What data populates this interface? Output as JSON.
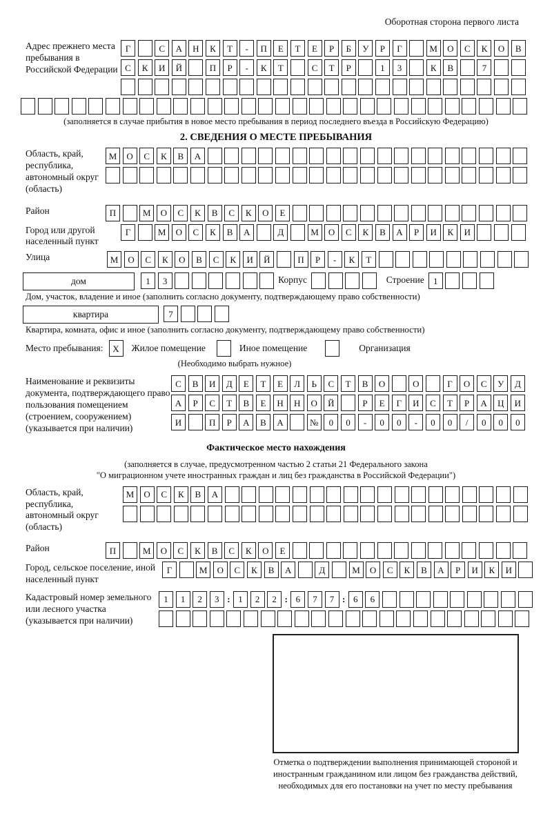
{
  "page": {
    "header_note": "Оборотная сторона первого листа"
  },
  "prev_address": {
    "label": "Адрес прежнего места пребывания в Российской Федерации",
    "row1": {
      "t": "Г САНКТ-ПЕТЕРБУРГ МОСКОВ",
      "n": 24
    },
    "row2": {
      "t": "СКИЙ ПР-КТ СТР 13 КВ 7",
      "n": 24
    },
    "row3": {
      "t": "",
      "n": 24
    },
    "row4": {
      "t": "",
      "n": 30
    },
    "note": "(заполняется в случае прибытия в новое место пребывания в период последнего въезда в Российскую Федерацию)"
  },
  "section2": {
    "title": "2. СВЕДЕНИЯ О МЕСТЕ ПРЕБЫВАНИЯ",
    "region": {
      "label": "Область, край, республика, автономный округ (область)",
      "row1": {
        "t": "МОСКВА",
        "n": 25
      },
      "row2": {
        "t": "",
        "n": 25
      }
    },
    "district": {
      "label": "Район",
      "row": {
        "t": "П МОСКВСКОЕ",
        "n": 25
      }
    },
    "city": {
      "label": "Город или другой населенный пункт",
      "row": {
        "t": "Г МОСКВА Д МОСКВАРИКИ",
        "n": 24
      }
    },
    "street": {
      "label": "Улица",
      "row": {
        "t": "МОСКОВСКИЙ ПР-КТ",
        "n": 25
      }
    },
    "house": {
      "house_box_label": "дом",
      "house_row": {
        "t": "13",
        "n": 8
      },
      "korpus_label": "Корпус",
      "korpus_row": {
        "t": "",
        "n": 4
      },
      "stroenie_label": "Строение",
      "stroenie_row": {
        "t": "1",
        "n": 4
      },
      "note": "Дом, участок, владение и иное (заполнить согласно документу, подтверждающему право собственности)"
    },
    "apartment": {
      "box_label": "квартира",
      "row": {
        "t": "7",
        "n": 4
      },
      "note": "Квартира, комната, офис и иное (заполнить согласно документу, подтверждающему право собственности)"
    },
    "stay_type": {
      "label": "Место пребывания:",
      "options": [
        {
          "label": "Жилое помещение",
          "mark": "X"
        },
        {
          "label": "Иное помещение",
          "mark": ""
        },
        {
          "label": "Организация",
          "mark": ""
        }
      ],
      "note": "(Необходимо выбрать нужное)"
    },
    "doc": {
      "label": "Наименование и реквизиты документа, подтверждающего право пользования помещением (строением, сооружением) (указывается при наличии)",
      "row1": {
        "t": "СВИДЕТЕЛЬСТВО О ГОСУД",
        "n": 21
      },
      "row2": {
        "t": "АРСТВЕННОЙ РЕГИСТРАЦИ",
        "n": 21
      },
      "row3": {
        "t": "И ПРАВА №00-00-00/000",
        "n": 21
      }
    }
  },
  "actual_location": {
    "title": "Фактическое место нахождения",
    "note1": "(заполняется в случае, предусмотренном частью 2 статьи 21 Федерального закона",
    "note2": "\"О миграционном учете иностранных граждан и лиц без гражданства в Российской Федерации\")",
    "region": {
      "label": "Область, край, республика, автономный округ (область)",
      "row1": {
        "t": "МОСКВА",
        "n": 24
      },
      "row2": {
        "t": "",
        "n": 24
      }
    },
    "district": {
      "label": "Район",
      "row": {
        "t": "П МОСКВСКОЕ",
        "n": 25
      }
    },
    "city": {
      "label": "Город, сельское поселение, иной населенный пункт",
      "row": {
        "t": "Г МОСКВА Д МОСКВАРИКИ",
        "n": 22
      }
    },
    "cadastre": {
      "label": "Кадастровый номер земельного или лесного участка (указывается при наличии)",
      "row1": {
        "t": "1123:122:677:66",
        "n": 21
      },
      "row2": {
        "t": "",
        "n": 22
      }
    },
    "stamp_caption": "Отметка о подтверждении выполнения принимающей стороной и иностранным гражданином или лицом без гражданства действий, необходимых для его постановки на учет по месту пребывания"
  }
}
